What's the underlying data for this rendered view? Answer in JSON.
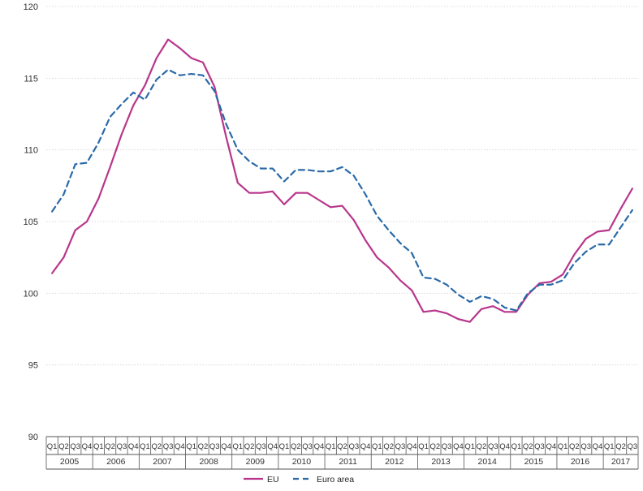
{
  "chart_data": {
    "type": "line",
    "title": "",
    "xlabel": "",
    "ylabel": "",
    "ylim": [
      90,
      120
    ],
    "yticks": [
      90,
      95,
      100,
      105,
      110,
      115,
      120
    ],
    "grid": true,
    "legend_position": "bottom",
    "quarters": [
      "Q1",
      "Q2",
      "Q3",
      "Q4"
    ],
    "years": [
      "2005",
      "2006",
      "2007",
      "2008",
      "2009",
      "2010",
      "2011",
      "2012",
      "2013",
      "2014",
      "2015",
      "2016",
      "2017"
    ],
    "x_count": 51,
    "series": [
      {
        "name": "EU",
        "color": "#b8358b",
        "dash": "solid",
        "values": [
          101.4,
          102.5,
          104.4,
          105.0,
          106.6,
          108.8,
          111.1,
          113.1,
          114.5,
          116.4,
          117.7,
          117.1,
          116.4,
          116.1,
          114.4,
          110.9,
          107.7,
          107.0,
          107.0,
          107.1,
          106.2,
          107.0,
          107.0,
          106.5,
          106.0,
          106.1,
          105.1,
          103.7,
          102.5,
          101.8,
          100.9,
          100.2,
          98.7,
          98.8,
          98.6,
          98.2,
          98.0,
          98.9,
          99.1,
          98.7,
          98.7,
          99.9,
          100.7,
          100.8,
          101.3,
          102.7,
          103.8,
          104.3,
          104.4,
          105.9,
          107.3
        ]
      },
      {
        "name": "Euro area",
        "color": "#2a6aa8",
        "dash": "dashed",
        "values": [
          105.7,
          106.9,
          109.0,
          109.1,
          110.5,
          112.3,
          113.2,
          114.0,
          113.5,
          114.9,
          115.6,
          115.2,
          115.3,
          115.2,
          114.1,
          111.8,
          110.0,
          109.2,
          108.7,
          108.7,
          107.8,
          108.6,
          108.6,
          108.5,
          108.5,
          108.8,
          108.2,
          106.9,
          105.4,
          104.4,
          103.5,
          102.8,
          101.1,
          101.0,
          100.6,
          99.9,
          99.4,
          99.8,
          99.6,
          99.0,
          98.8,
          100.0,
          100.6,
          100.6,
          100.9,
          102.1,
          102.9,
          103.4,
          103.4,
          104.6,
          105.8
        ]
      }
    ]
  }
}
